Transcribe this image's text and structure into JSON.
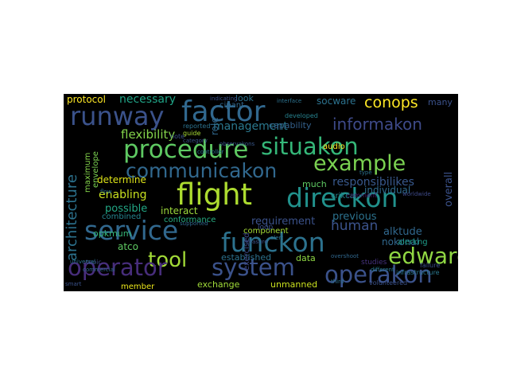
{
  "word_cloud": {
    "background": "#000000",
    "words": [
      {
        "text": "runway",
        "color": "#3b528b"
      },
      {
        "text": "factor",
        "color": "#31688e"
      },
      {
        "text": "conops",
        "color": "#fde725"
      },
      {
        "text": "procedure",
        "color": "#5ec962"
      },
      {
        "text": "situakon",
        "color": "#35b779"
      },
      {
        "text": "informakon",
        "color": "#3e4a89"
      },
      {
        "text": "example",
        "color": "#7ad151"
      },
      {
        "text": "communicakon",
        "color": "#31688e"
      },
      {
        "text": "flight",
        "color": "#addc30"
      },
      {
        "text": "direckon",
        "color": "#21918c"
      },
      {
        "text": "service",
        "color": "#31688e"
      },
      {
        "text": "funckon",
        "color": "#2c728e"
      },
      {
        "text": "tool",
        "color": "#a2da37"
      },
      {
        "text": "edward",
        "color": "#90d743"
      },
      {
        "text": "operator",
        "color": "#472d7b"
      },
      {
        "text": "system",
        "color": "#3b528b"
      },
      {
        "text": "operakon",
        "color": "#3b528b"
      },
      {
        "text": "architecture",
        "color": "#2c728e"
      },
      {
        "text": "human",
        "color": "#3b528b"
      },
      {
        "text": "management",
        "color": "#2a788e"
      },
      {
        "text": "flexibility",
        "color": "#84d44b"
      },
      {
        "text": "necessary",
        "color": "#20a386"
      },
      {
        "text": "protocol",
        "color": "#fde725"
      },
      {
        "text": "enabling",
        "color": "#c8e020"
      },
      {
        "text": "determine",
        "color": "#dde318"
      },
      {
        "text": "possible",
        "color": "#22a785"
      },
      {
        "text": "combined",
        "color": "#25848e"
      },
      {
        "text": "opkmum",
        "color": "#35b779"
      },
      {
        "text": "atco",
        "color": "#5ec962"
      },
      {
        "text": "interact",
        "color": "#9dd93b"
      },
      {
        "text": "conformance",
        "color": "#27ad81"
      },
      {
        "text": "requirement",
        "color": "#3b528b"
      },
      {
        "text": "alktude",
        "color": "#31688e"
      },
      {
        "text": "nokonal",
        "color": "#31688e"
      },
      {
        "text": "previous",
        "color": "#2c728e"
      },
      {
        "text": "responsibilikes",
        "color": "#38588c"
      },
      {
        "text": "individual",
        "color": "#306a8e"
      },
      {
        "text": "crikcal",
        "color": "#24868e"
      },
      {
        "text": "alerkng",
        "color": "#1e9d89"
      },
      {
        "text": "data",
        "color": "#8fd744"
      },
      {
        "text": "established",
        "color": "#2c728e"
      },
      {
        "text": "exchange",
        "color": "#a0da39"
      },
      {
        "text": "unmanned",
        "color": "#cae11f"
      },
      {
        "text": "member",
        "color": "#eae51a"
      },
      {
        "text": "maximum",
        "color": "#84d44b"
      },
      {
        "text": "envelope",
        "color": "#7ad151"
      },
      {
        "text": "capability",
        "color": "#34618d"
      },
      {
        "text": "audio",
        "color": "#fde725"
      },
      {
        "text": "socware",
        "color": "#2c728e"
      },
      {
        "text": "many",
        "color": "#3b528b"
      },
      {
        "text": "overall",
        "color": "#3b528b"
      },
      {
        "text": "much",
        "color": "#5ec962"
      },
      {
        "text": "role",
        "color": "#31688e"
      },
      {
        "text": "look",
        "color": "#2c728e"
      },
      {
        "text": "cipant",
        "color": "#31688e"
      },
      {
        "text": "component",
        "color": "#a5db36"
      },
      {
        "text": "loop",
        "color": "#3b528b"
      },
      {
        "text": "exercised",
        "color": "#3e4989"
      },
      {
        "text": "studies",
        "color": "#46327e"
      },
      {
        "text": "comment",
        "color": "#48186a"
      },
      {
        "text": "guide",
        "color": "#a8db34"
      },
      {
        "text": "reported",
        "color": "#2c728e"
      },
      {
        "text": "category",
        "color": "#3b528b"
      },
      {
        "text": "observakons",
        "color": "#38588c"
      },
      {
        "text": "developed",
        "color": "#26828e"
      },
      {
        "text": "interface",
        "color": "#2c728e"
      },
      {
        "text": "topic",
        "color": "#3e4a89"
      },
      {
        "text": "universal",
        "color": "#2c728e"
      },
      {
        "text": "different",
        "color": "#2a788e"
      },
      {
        "text": "infrastructure",
        "color": "#2a788e"
      },
      {
        "text": "volunteered",
        "color": "#3b528b"
      },
      {
        "text": "failure",
        "color": "#3b528b"
      },
      {
        "text": "worldwide",
        "color": "#3e4a89"
      },
      {
        "text": "type",
        "color": "#2c728e"
      },
      {
        "text": "measure",
        "color": "#3b528b"
      },
      {
        "text": "overshoot",
        "color": "#31688e"
      },
      {
        "text": "third",
        "color": "#2c728e"
      },
      {
        "text": "commercial",
        "color": "#31688e"
      },
      {
        "text": "flow",
        "color": "#2c728e"
      },
      {
        "text": "smart",
        "color": "#3b528b"
      },
      {
        "text": "note",
        "color": "#3b528b"
      },
      {
        "text": "supported",
        "color": "#31688e"
      },
      {
        "text": "controller",
        "color": "#2c728e"
      },
      {
        "text": "indicating",
        "color": "#3b528b"
      },
      {
        "text": "alert",
        "color": "#2c728e"
      }
    ]
  }
}
